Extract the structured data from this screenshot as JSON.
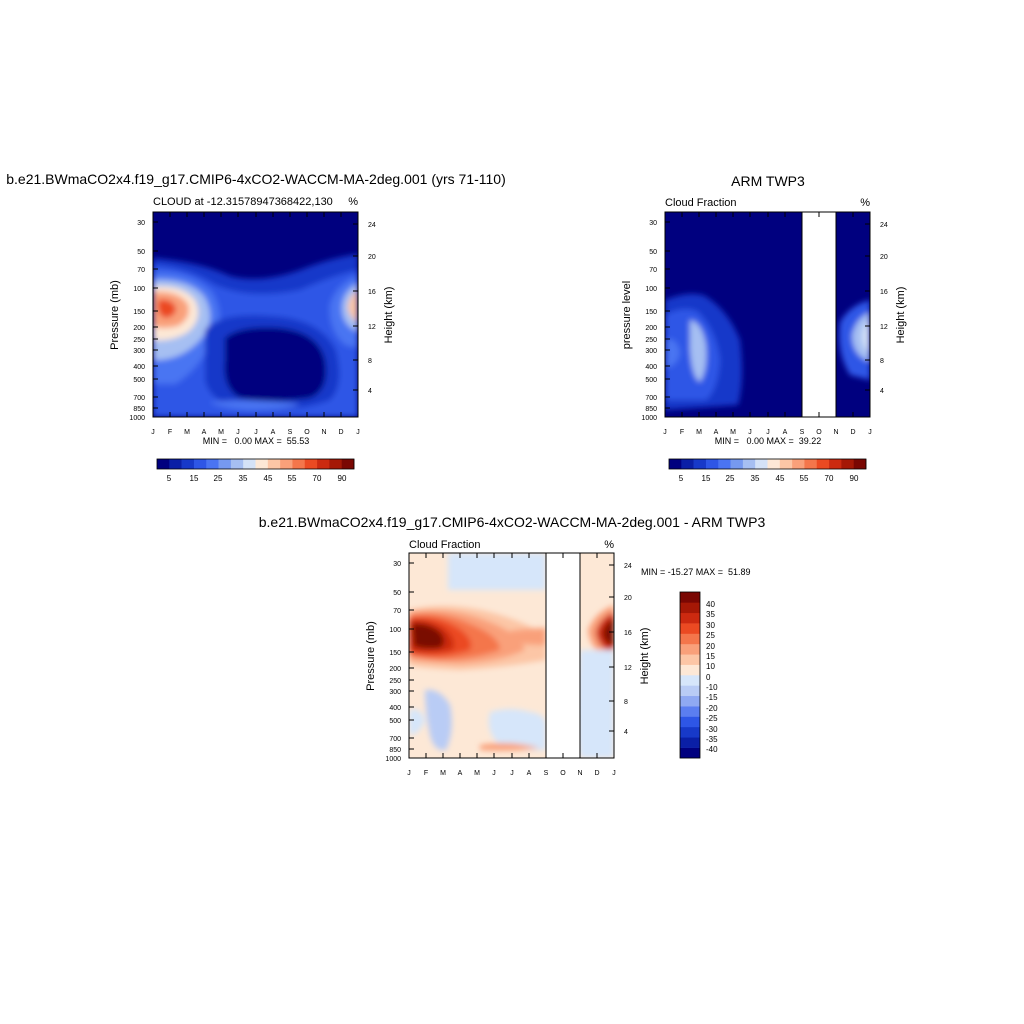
{
  "colors": {
    "seq": [
      "#00007f",
      "#0a1fa6",
      "#1739c9",
      "#2e56e6",
      "#4a74f2",
      "#7699f0",
      "#a6bff2",
      "#d4e2f7",
      "#fde8d6",
      "#fcc6a6",
      "#f9a07a",
      "#f4764b",
      "#eb4a22",
      "#cc2a10",
      "#a51806",
      "#7a0703"
    ],
    "div": [
      "#00007f",
      "#0a1fa6",
      "#1739c9",
      "#2e56e6",
      "#5b7ef0",
      "#8fa9f2",
      "#b9ccf5",
      "#d6e6fa",
      "#fde8d6",
      "#fcc6a6",
      "#f9a07a",
      "#f4764b",
      "#eb4a22",
      "#cc2a10",
      "#a51806",
      "#7a0703"
    ]
  },
  "chart_data": [
    {
      "type": "heatmap",
      "title": "b.e21.BWmaCO2x4.f19_g17.CMIP6-4xCO2-WACCM-MA-2deg.001 (yrs 71-110)",
      "subtitle": "CLOUD at -12.31578947368422,130",
      "units": "%",
      "ylabel": "Pressure (mb)",
      "ylabel_right": "Height (km)",
      "x_ticks": [
        "J",
        "F",
        "M",
        "A",
        "M",
        "J",
        "J",
        "A",
        "S",
        "O",
        "N",
        "D",
        "J"
      ],
      "y_ticks": [
        "30",
        "50",
        "70",
        "100",
        "150",
        "200",
        "250",
        "300",
        "400",
        "500",
        "700",
        "850",
        "1000"
      ],
      "y_ticks_right": [
        "24",
        "20",
        "16",
        "12",
        "8",
        "4"
      ],
      "stats": "MIN =   0.00 MAX =  55.53",
      "levels": [
        "5",
        "15",
        "25",
        "35",
        "45",
        "55",
        "70",
        "90"
      ]
    },
    {
      "type": "heatmap",
      "title": "ARM TWP3",
      "subtitle": "Cloud Fraction",
      "units": "%",
      "ylabel": "pressure level",
      "ylabel_right": "Height (km)",
      "x_ticks": [
        "J",
        "F",
        "M",
        "A",
        "M",
        "J",
        "J",
        "A",
        "S",
        "O",
        "N",
        "D",
        "J"
      ],
      "y_ticks": [
        "30",
        "50",
        "70",
        "100",
        "150",
        "200",
        "250",
        "300",
        "400",
        "500",
        "700",
        "850",
        "1000"
      ],
      "y_ticks_right": [
        "24",
        "20",
        "16",
        "12",
        "8",
        "4"
      ],
      "stats": "MIN =   0.00 MAX =  39.22",
      "levels": [
        "5",
        "15",
        "25",
        "35",
        "45",
        "55",
        "70",
        "90"
      ],
      "missing_months": [
        "S",
        "O"
      ]
    },
    {
      "type": "heatmap",
      "title": "b.e21.BWmaCO2x4.f19_g17.CMIP6-4xCO2-WACCM-MA-2deg.001 - ARM TWP3",
      "subtitle": "Cloud Fraction",
      "units": "%",
      "ylabel": "Pressure (mb)",
      "ylabel_right": "Height (km)",
      "x_ticks": [
        "J",
        "F",
        "M",
        "A",
        "M",
        "J",
        "J",
        "A",
        "S",
        "O",
        "N",
        "D",
        "J"
      ],
      "y_ticks": [
        "30",
        "50",
        "70",
        "100",
        "150",
        "200",
        "250",
        "300",
        "400",
        "500",
        "700",
        "850",
        "1000"
      ],
      "y_ticks_right": [
        "24",
        "20",
        "16",
        "12",
        "8",
        "4"
      ],
      "stats": "MIN = -15.27 MAX =  51.89",
      "levels": [
        "40",
        "35",
        "30",
        "25",
        "20",
        "15",
        "10",
        "0",
        "-10",
        "-15",
        "-20",
        "-25",
        "-30",
        "-35",
        "-40"
      ],
      "missing_months": [
        "S",
        "O"
      ]
    }
  ]
}
